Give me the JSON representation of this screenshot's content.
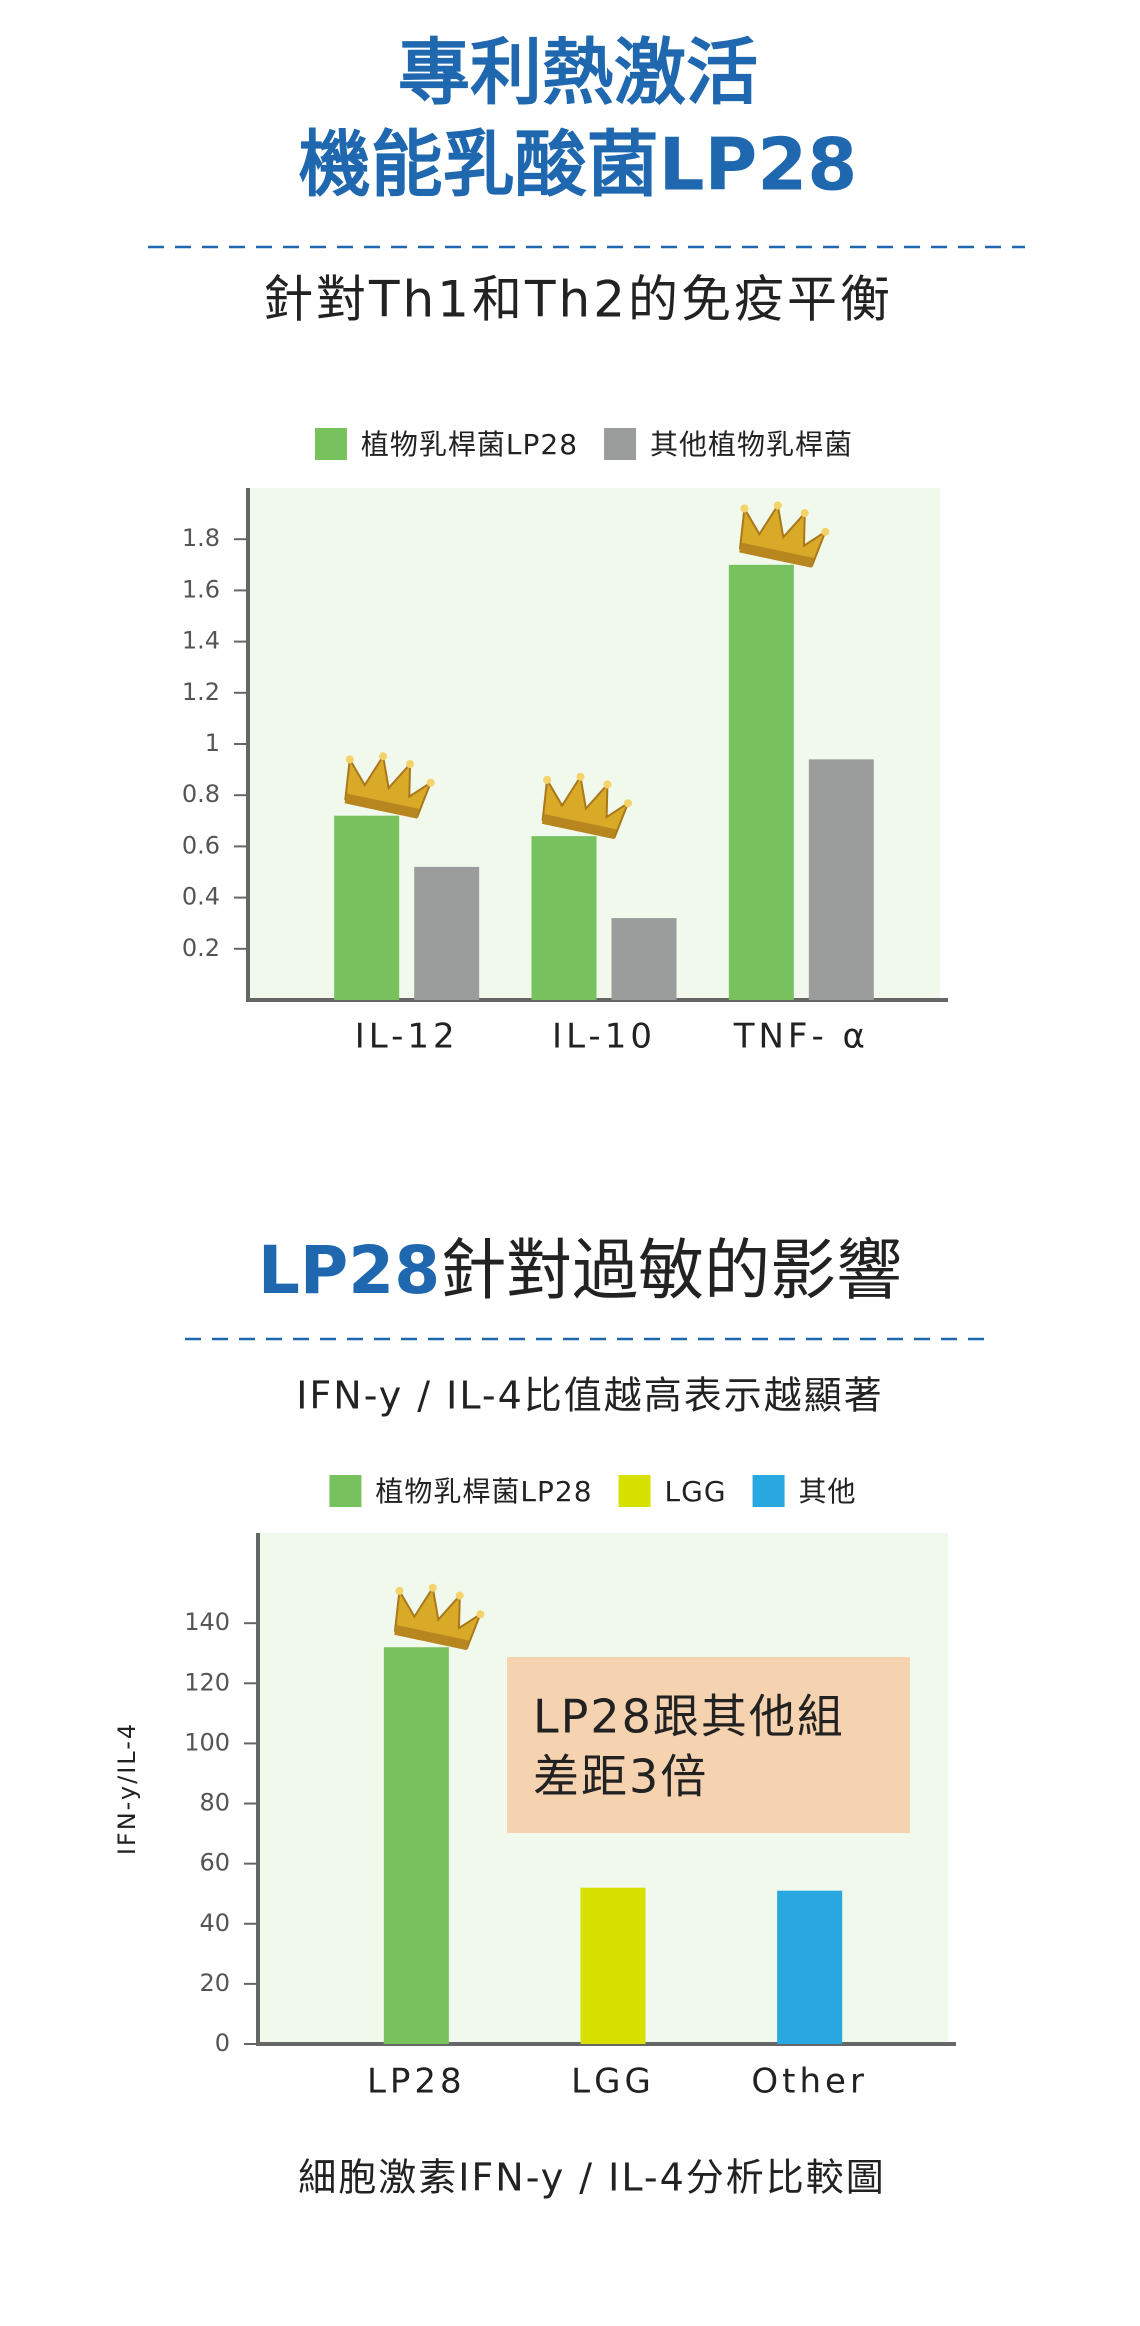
{
  "header": {
    "title_lines": [
      "專利熱激活",
      "機能乳酸菌LP28"
    ],
    "subtitle": "針對Th1和Th2的免疫平衡"
  },
  "section2": {
    "title_highlight": "LP28",
    "title_rest": "針對過敏的影響",
    "subtitle": "IFN-y / IL-4比值越高表示越顯著",
    "caption": "細胞激素IFN-y / IL-4分析比較圖"
  },
  "chart_data": [
    {
      "type": "bar",
      "categories": [
        "IL-12",
        "IL-10",
        "TNF- α"
      ],
      "series": [
        {
          "name": "植物乳桿菌LP28",
          "color": "#77c25e",
          "values": [
            0.72,
            0.64,
            1.7
          ]
        },
        {
          "name": "其他植物乳桿菌",
          "color": "#9a9d9b",
          "values": [
            0.52,
            0.32,
            0.94
          ]
        }
      ],
      "ylim": [
        0,
        2
      ],
      "yticks": [
        0.2,
        0.4,
        0.6,
        0.8,
        1,
        1.2,
        1.4,
        1.6,
        1.8
      ],
      "legend": "top"
    },
    {
      "type": "bar",
      "categories": [
        "LP28",
        "LGG",
        "Other"
      ],
      "ylabel": "IFN-y/IL-4",
      "series": [
        {
          "name": "植物乳桿菌LP28",
          "color": "#77c25e",
          "values": [
            132,
            null,
            null
          ]
        },
        {
          "name": "LGG",
          "color": "#d8e000",
          "values": [
            null,
            52,
            null
          ]
        },
        {
          "name": "其他",
          "color": "#29a8e0",
          "values": [
            null,
            null,
            51
          ]
        }
      ],
      "ylim": [
        0,
        170
      ],
      "yticks": [
        0,
        20,
        40,
        60,
        80,
        100,
        120,
        140
      ],
      "legend": "top",
      "annotation": [
        "LP28跟其他組",
        "差距3倍"
      ]
    }
  ]
}
